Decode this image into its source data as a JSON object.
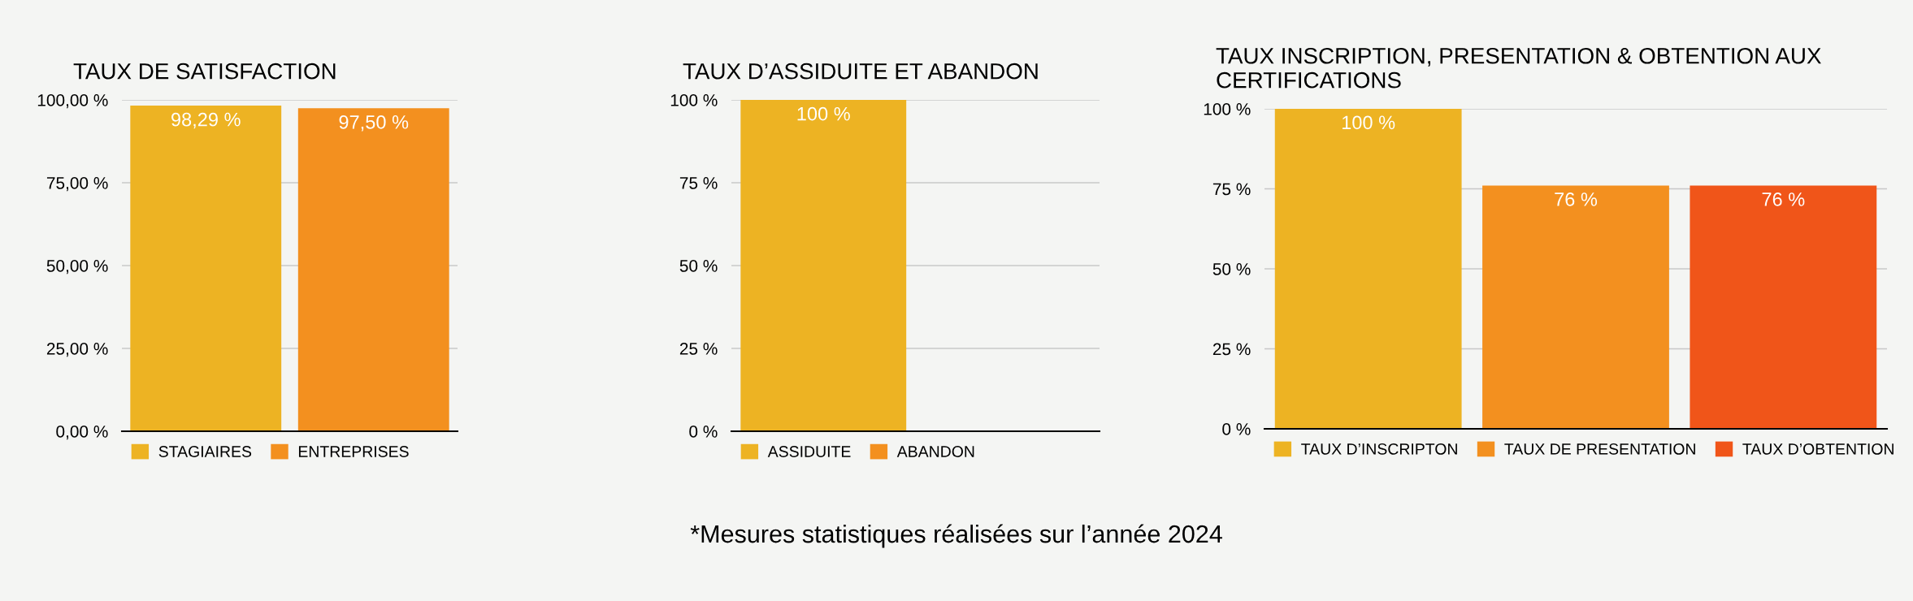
{
  "chart_data": [
    {
      "type": "bar",
      "title": "TAUX DE SATISFACTION",
      "categories": [
        null
      ],
      "ylim": [
        0,
        100
      ],
      "yticks": [
        {
          "value": 0,
          "label": "0,00 %"
        },
        {
          "value": 25,
          "label": "25,00 %"
        },
        {
          "value": 50,
          "label": "50,00 %"
        },
        {
          "value": 75,
          "label": "75,00 %"
        },
        {
          "value": 100,
          "label": "100,00 %"
        }
      ],
      "grid": "y",
      "legend": "bottom",
      "series": [
        {
          "name": "STAGIAIRES",
          "color": "#edb323",
          "values": [
            98.29
          ],
          "value_labels": [
            "98,29 %"
          ]
        },
        {
          "name": "ENTREPRISES",
          "color": "#f3901f",
          "values": [
            97.5
          ],
          "value_labels": [
            "97,50 %"
          ]
        }
      ]
    },
    {
      "type": "bar",
      "title": "TAUX D’ASSIDUITE ET ABANDON",
      "categories": [
        null
      ],
      "ylim": [
        0,
        100
      ],
      "yticks": [
        {
          "value": 0,
          "label": "0 %"
        },
        {
          "value": 25,
          "label": "25 %"
        },
        {
          "value": 50,
          "label": "50 %"
        },
        {
          "value": 75,
          "label": "75 %"
        },
        {
          "value": 100,
          "label": "100 %"
        }
      ],
      "grid": "y",
      "legend": "bottom",
      "annotations": [
        "*Mesures statistiques réalisées sur l’année 2024"
      ],
      "series": [
        {
          "name": "ASSIDUITE",
          "color": "#edb323",
          "values": [
            100
          ],
          "value_labels": [
            "100 %"
          ]
        },
        {
          "name": "ABANDON",
          "color": "#f3901f",
          "values": [
            0
          ],
          "value_labels": [
            null
          ]
        }
      ]
    },
    {
      "type": "bar",
      "title": "TAUX INSCRIPTION, PRESENTATION & OBTENTION AUX CERTIFICATIONS",
      "categories": [
        null
      ],
      "ylim": [
        0,
        100
      ],
      "yticks": [
        {
          "value": 0,
          "label": "0 %"
        },
        {
          "value": 25,
          "label": "25 %"
        },
        {
          "value": 50,
          "label": "50 %"
        },
        {
          "value": 75,
          "label": "75 %"
        },
        {
          "value": 100,
          "label": "100 %"
        }
      ],
      "grid": "y",
      "legend": "bottom",
      "series": [
        {
          "name": "TAUX D’INSCRIPTON",
          "color": "#edb323",
          "values": [
            100
          ],
          "value_labels": [
            "100 %"
          ]
        },
        {
          "name": "TAUX DE PRESENTATION",
          "color": "#f3901f",
          "values": [
            76
          ],
          "value_labels": [
            "76 %"
          ]
        },
        {
          "name": "TAUX D’OBTENTION",
          "color": "#f05519",
          "values": [
            76
          ],
          "value_labels": [
            "76 %"
          ]
        }
      ]
    }
  ]
}
